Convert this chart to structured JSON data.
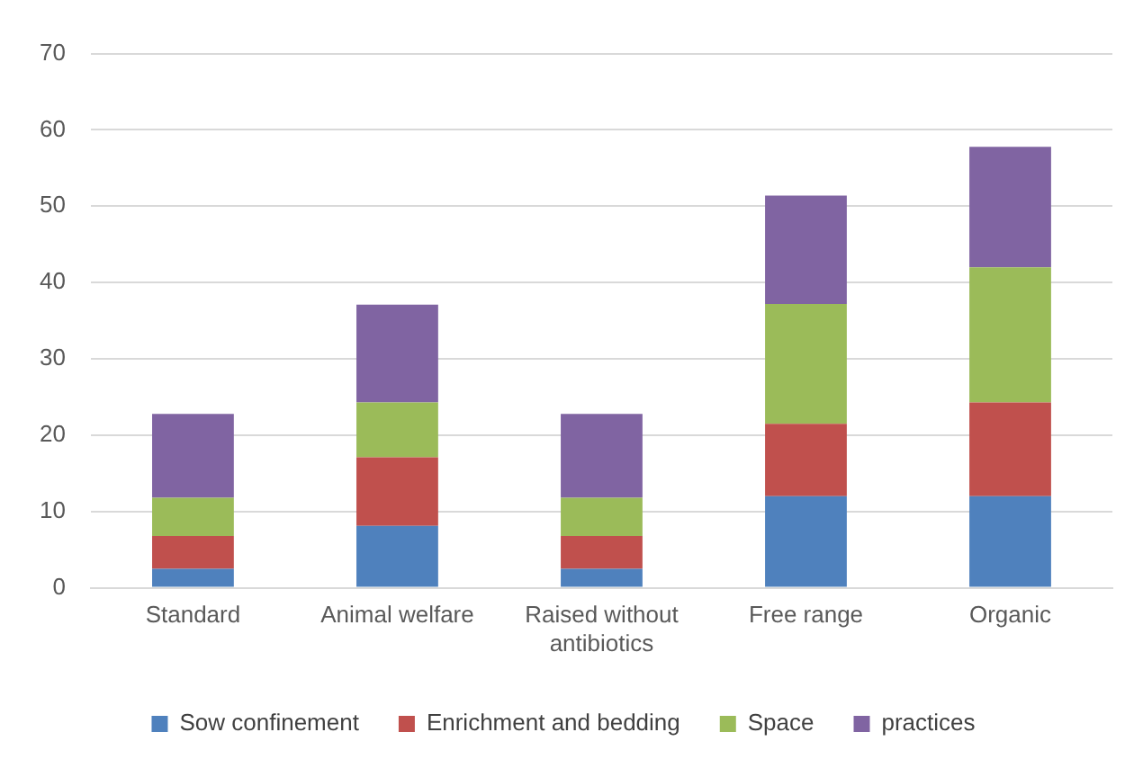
{
  "chart_data": {
    "type": "bar",
    "stacked": true,
    "categories": [
      "Standard",
      "Animal welfare",
      "Raised without antibiotics",
      "Free range",
      "Organic"
    ],
    "series": [
      {
        "name": "Sow confinement",
        "color": "#4f81bd",
        "values": [
          2.5,
          8.1,
          2.5,
          12,
          12
        ]
      },
      {
        "name": "Enrichment and bedding",
        "color": "#c0504d",
        "values": [
          4.3,
          9,
          4.3,
          9.5,
          12.3
        ]
      },
      {
        "name": "Space",
        "color": "#9bbb59",
        "values": [
          5,
          7.2,
          5,
          15.7,
          17.7
        ]
      },
      {
        "name": "practices",
        "color": "#8064a2",
        "values": [
          11,
          12.8,
          11,
          14.2,
          15.8
        ]
      }
    ],
    "ylim": [
      0,
      70
    ],
    "yticks": [
      0,
      10,
      20,
      30,
      40,
      50,
      60,
      70
    ],
    "grid": "y",
    "legend": "bottom"
  }
}
